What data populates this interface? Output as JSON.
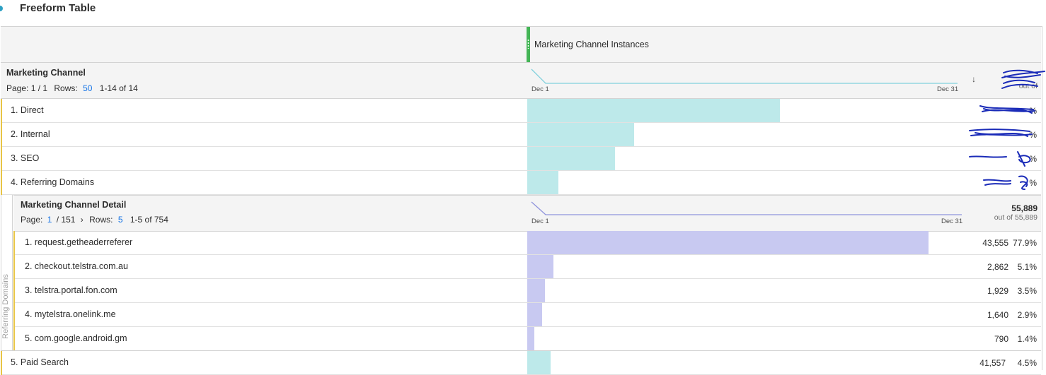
{
  "panel": {
    "title": "Freeform Table"
  },
  "metric": {
    "label": "Marketing Channel Instances"
  },
  "dimension": {
    "title": "Marketing Channel",
    "page_label": "Page: 1 / 1",
    "rows_label": "Rows:",
    "rows_value": "50",
    "range": "1-14 of 14",
    "spark_start": "Dec 1",
    "spark_end": "Dec 31",
    "total_prefix": "out of"
  },
  "breakdown": {
    "title": "Marketing Channel Detail",
    "page_label": "Page:",
    "page_current": "1",
    "page_total": "/ 151",
    "page_next": "›",
    "rows_label": "Rows:",
    "rows_value": "5",
    "range": "1-5 of 754",
    "spark_start": "Dec 1",
    "spark_end": "Dec 31",
    "total": "55,889",
    "total_sub": "out of 55,889",
    "side_label": "Referring Domains"
  },
  "rows": [
    {
      "label": "1. Direct",
      "value": "",
      "pct": "%",
      "share": 0.49
    },
    {
      "label": "2. Internal",
      "value": "",
      "pct": "%",
      "share": 0.207
    },
    {
      "label": "3. SEO",
      "value": "",
      "pct": "%",
      "share": 0.17
    },
    {
      "label": "4. Referring Domains",
      "value": "",
      "pct": "%",
      "share": 0.06
    }
  ],
  "sub_rows": [
    {
      "label": "1. request.getheaderreferer",
      "value": "43,555",
      "pct": "77.9%",
      "share": 0.779
    },
    {
      "label": "2. checkout.telstra.com.au",
      "value": "2,862",
      "pct": "5.1%",
      "share": 0.051
    },
    {
      "label": "3. telstra.portal.fon.com",
      "value": "1,929",
      "pct": "3.5%",
      "share": 0.035
    },
    {
      "label": "4. mytelstra.onelink.me",
      "value": "1,640",
      "pct": "2.9%",
      "share": 0.029
    },
    {
      "label": "5. com.google.android.gm",
      "value": "790",
      "pct": "1.4%",
      "share": 0.014
    }
  ],
  "last_row": {
    "label": "5. Paid Search",
    "value": "41,557",
    "pct": "4.5%",
    "share": 0.045
  },
  "colors": {
    "accent": "#1473e6",
    "teal_bar": "#bde9ea",
    "purple_bar": "#c8c9f1",
    "grip": "#44b556",
    "row_marker": "#e8c546",
    "redaction": "#1a2bb8"
  }
}
